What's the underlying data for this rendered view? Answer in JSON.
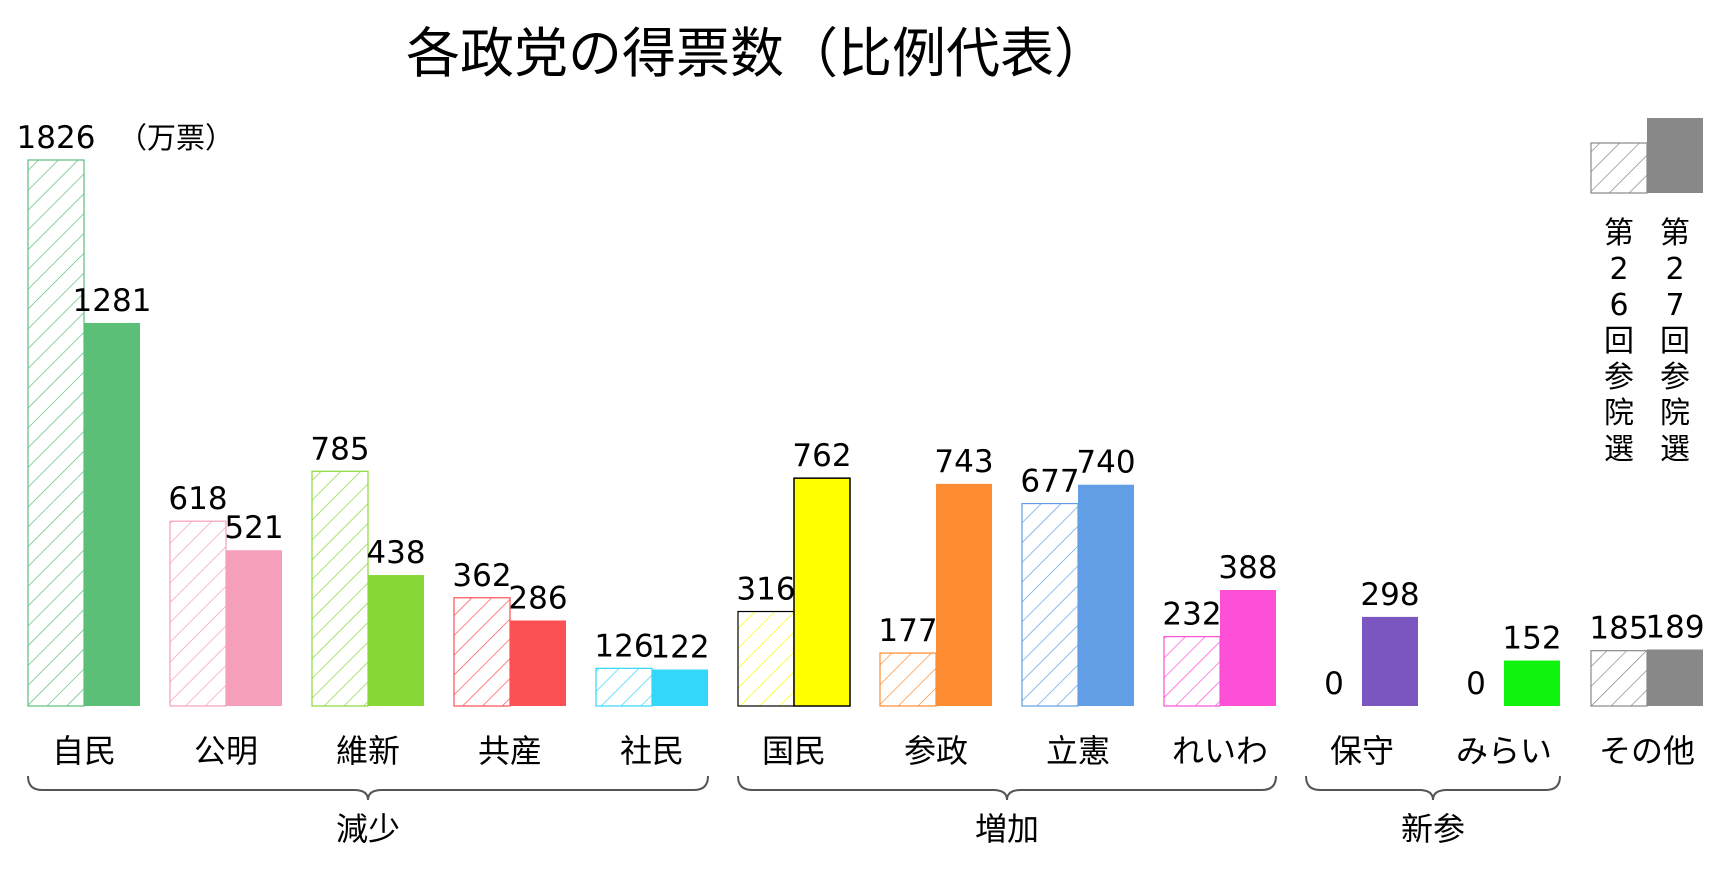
{
  "chart_data": {
    "type": "bar",
    "title": "各政党の得票数（比例代表）",
    "unit_label": "（万票）",
    "ylim": [
      0,
      1826
    ],
    "grid": false,
    "legend_position": "top-right",
    "series": [
      {
        "name": "第26回参院選",
        "style": "hatched-outline"
      },
      {
        "name": "第27回参院選",
        "style": "solid"
      }
    ],
    "categories": [
      {
        "label": "自民",
        "group": "減少",
        "color": "#5cbf78",
        "prev": 1826,
        "curr": 1281
      },
      {
        "label": "公明",
        "group": "減少",
        "color": "#f59fba",
        "prev": 618,
        "curr": 521
      },
      {
        "label": "維新",
        "group": "減少",
        "color": "#88d938",
        "prev": 785,
        "curr": 438
      },
      {
        "label": "共産",
        "group": "減少",
        "color": "#fd5055",
        "prev": 362,
        "curr": 286
      },
      {
        "label": "社民",
        "group": "減少",
        "color": "#33d7fa",
        "prev": 126,
        "curr": 122
      },
      {
        "label": "国民",
        "group": "増加",
        "color": "#ffff00",
        "prev": 316,
        "curr": 762,
        "outline": "#000000"
      },
      {
        "label": "参政",
        "group": "増加",
        "color": "#fd8c32",
        "prev": 177,
        "curr": 743
      },
      {
        "label": "立憲",
        "group": "増加",
        "color": "#629ee6",
        "prev": 677,
        "curr": 740
      },
      {
        "label": "れいわ",
        "group": "増加",
        "color": "#fe4fd7",
        "prev": 232,
        "curr": 388
      },
      {
        "label": "保守",
        "group": "新参",
        "color": "#7b56c0",
        "prev": 0,
        "curr": 298
      },
      {
        "label": "みらい",
        "group": "新参",
        "color": "#0ef20e",
        "prev": 0,
        "curr": 152
      },
      {
        "label": "その他",
        "group": "",
        "color": "#888888",
        "prev": 185,
        "curr": 189
      }
    ],
    "groups": [
      "減少",
      "増加",
      "新参"
    ]
  }
}
